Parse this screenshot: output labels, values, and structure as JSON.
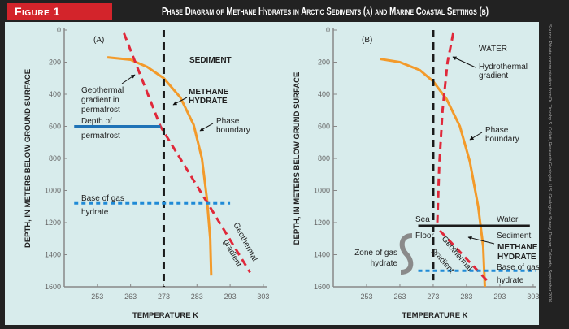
{
  "figure_label": "Figure 1",
  "title": "Phase Diagram of Methane Hydrates in Arctic Sediments (a) and Marine Coastal Settings (b)",
  "source": "Source: Private communication from Dr. Timothy S. Collett, Research Geologist, U.S. Geological Survey, Denver, Colorado, September 2006.",
  "colors": {
    "header": "#222222",
    "figure_label": "#d3242b",
    "panel": "#d8ecec",
    "phase_boundary": "#f39a2a",
    "geothermal": "#e0283a",
    "freezing_line": "#1a1a1a",
    "permafrost": "#1f73b7",
    "base_hydrate": "#1f8ad6",
    "sea_floor": "#1a1a1a"
  },
  "chart_data": [
    {
      "type": "line",
      "panel_label": "(A)",
      "xlabel": "TEMPERATURE K",
      "ylabel": "DEPTH, IN METERS BELOW GROUND SURFACE",
      "xlim": [
        243,
        304
      ],
      "ylim": [
        1600,
        0
      ],
      "y_inverted": true,
      "xticks": [
        253,
        263,
        273,
        283,
        293,
        303
      ],
      "yticks": [
        0,
        200,
        400,
        600,
        800,
        1000,
        1200,
        1400,
        1600
      ],
      "series": [
        {
          "name": "Phase boundary",
          "style": "solid",
          "color": "#f39a2a",
          "points": [
            [
              256,
              170
            ],
            [
              263,
              185
            ],
            [
              268,
              230
            ],
            [
              273,
              300
            ],
            [
              278,
              420
            ],
            [
              282,
              590
            ],
            [
              284.5,
              800
            ],
            [
              286,
              1050
            ],
            [
              287,
              1300
            ],
            [
              287.3,
              1530
            ]
          ]
        },
        {
          "name": "Geothermal gradient",
          "style": "dashed",
          "color": "#e0283a",
          "points": [
            [
              261,
              20
            ],
            [
              272,
              600
            ],
            [
              299,
              1510
            ]
          ]
        },
        {
          "name": "",
          "style": "dashed",
          "color": "#1a1a1a",
          "points": [
            [
              273,
              0
            ],
            [
              273,
              1600
            ]
          ]
        },
        {
          "name": "Depth of permafrost",
          "style": "solid",
          "color": "#1f73b7",
          "points": [
            [
              246,
              600
            ],
            [
              272,
              600
            ]
          ]
        },
        {
          "name": "Base of gas hydrate",
          "style": "dotted",
          "color": "#1f8ad6",
          "points": [
            [
              246,
              1080
            ],
            [
              293,
              1080
            ]
          ]
        }
      ],
      "annotations": {
        "sediment": "SEDIMENT",
        "geo_permafrost": [
          "Geothermal",
          "gradient in",
          "permafrost"
        ],
        "methane": [
          "METHANE",
          "HYDRATE"
        ],
        "phase": [
          "Phase",
          "boundary"
        ],
        "permafrost_depth": [
          "Depth of",
          "permafrost"
        ],
        "base": [
          "Base of gas",
          "hydrate"
        ],
        "geothermal": [
          "Geothermal",
          "gradient"
        ]
      }
    },
    {
      "type": "line",
      "panel_label": "(B)",
      "xlabel": "TEMPERATURE K",
      "ylabel": "DEPTH, IN METERS BELOW GRUND SURFACE",
      "xlim": [
        243,
        304
      ],
      "ylim": [
        1600,
        0
      ],
      "y_inverted": true,
      "xticks": [
        253,
        263,
        273,
        283,
        293,
        303
      ],
      "yticks": [
        0,
        200,
        400,
        600,
        800,
        1000,
        1200,
        1400,
        1600
      ],
      "series": [
        {
          "name": "Phase boundary",
          "style": "solid",
          "color": "#f39a2a",
          "points": [
            [
              257,
              180
            ],
            [
              263,
              200
            ],
            [
              269,
              250
            ],
            [
              273,
              320
            ],
            [
              277,
              430
            ],
            [
              281,
              600
            ],
            [
              284,
              820
            ],
            [
              286.5,
              1100
            ],
            [
              288,
              1350
            ],
            [
              288.5,
              1600
            ]
          ]
        },
        {
          "name": "Hydrothermal gradient",
          "style": "dashed",
          "color": "#e0283a",
          "points": [
            [
              279,
              20
            ],
            [
              277.3,
              200
            ],
            [
              275.8,
              500
            ],
            [
              274.8,
              850
            ],
            [
              274.2,
              1220
            ]
          ]
        },
        {
          "name": "Geothermal gradient",
          "style": "dashed",
          "color": "#e0283a",
          "points": [
            [
              275,
              1250
            ],
            [
              290,
              1580
            ]
          ]
        },
        {
          "name": "",
          "style": "dashed",
          "color": "#1a1a1a",
          "points": [
            [
              273,
              0
            ],
            [
              273,
              1560
            ]
          ]
        },
        {
          "name": "Sea Floor",
          "style": "solid",
          "color": "#1a1a1a",
          "points": [
            [
              268.5,
              1220
            ],
            [
              302,
              1220
            ]
          ]
        },
        {
          "name": "Base of gas hydrate",
          "style": "dotted",
          "color": "#1f8ad6",
          "points": [
            [
              268.5,
              1500
            ],
            [
              304,
              1500
            ]
          ]
        }
      ],
      "annotations": {
        "water": "WATER",
        "hydrothermal": [
          "Hydrothermal",
          "gradient"
        ],
        "phase": [
          "Phase",
          "boundary"
        ],
        "sea": "Sea",
        "floor": "Floor",
        "water2": "Water",
        "sediment": "Sediment",
        "methane": [
          "METHANE",
          "HYDRATE"
        ],
        "base": [
          "Base of gas",
          "hydrate"
        ],
        "zone": [
          "Zone of gas",
          "hydrate"
        ],
        "geothermal": [
          "Geothermal",
          "gradient"
        ]
      }
    }
  ]
}
